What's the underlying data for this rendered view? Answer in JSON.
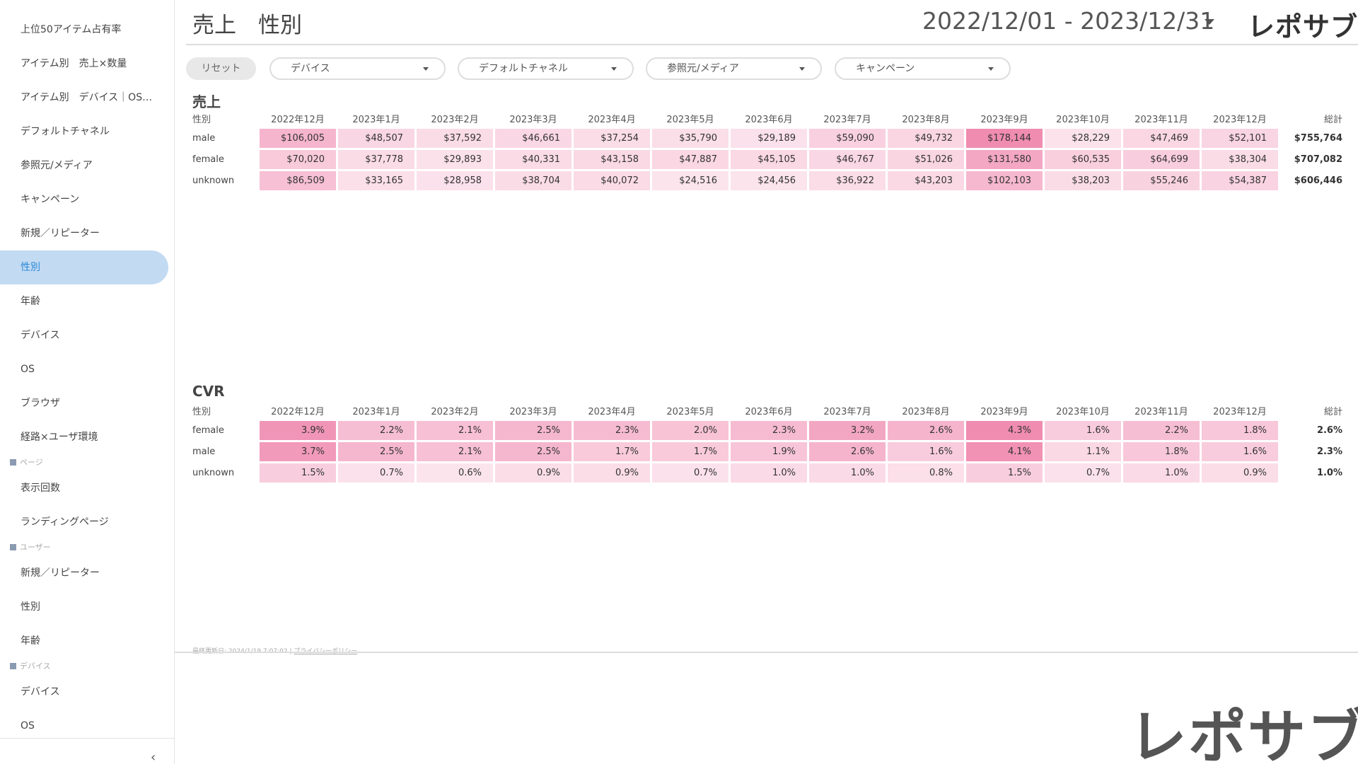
{
  "sidebar": {
    "active_index": 7,
    "groups": [
      {
        "items": [
          "上位50アイテム占有率",
          "アイテム別　売上×数量",
          "アイテム別　デバイス｜OS…",
          "デフォルトチャネル",
          "参照元/メディア",
          "キャンペーン",
          "新規／リピーター",
          "性別",
          "年齢",
          "デバイス",
          "OS",
          "ブラウザ",
          "経路×ユーザ環境"
        ]
      },
      {
        "heading": "ページ",
        "items": [
          "表示回数",
          "ランディングページ"
        ]
      },
      {
        "heading": "ユーザー",
        "items": [
          "新規／リピーター",
          "性別",
          "年齢"
        ]
      },
      {
        "heading": "デバイス",
        "items": [
          "デバイス",
          "OS"
        ]
      }
    ]
  },
  "header": {
    "title": "売上　性別",
    "date_range": "2022/12/01 - 2023/12/31",
    "logo": "レポサブ"
  },
  "filters": {
    "reset": "リセット",
    "dropdowns": [
      "デバイス",
      "デフォルトチャネル",
      "参照元/メディア",
      "キャンペーン"
    ]
  },
  "tables": [
    {
      "title": "売上",
      "columns": [
        "性別",
        "2022年12月",
        "2023年1月",
        "2023年2月",
        "2023年3月",
        "2023年4月",
        "2023年5月",
        "2023年6月",
        "2023年7月",
        "2023年8月",
        "2023年9月",
        "2023年10月",
        "2023年11月",
        "2023年12月",
        "総計"
      ],
      "rows": [
        [
          "male",
          "$106,005",
          "$48,507",
          "$37,592",
          "$46,661",
          "$37,254",
          "$35,790",
          "$29,189",
          "$59,090",
          "$49,732",
          "$178,144",
          "$28,229",
          "$47,469",
          "$52,101",
          "$755,764"
        ],
        [
          "female",
          "$70,020",
          "$37,778",
          "$29,893",
          "$40,331",
          "$43,158",
          "$47,887",
          "$45,105",
          "$46,767",
          "$51,026",
          "$131,580",
          "$60,535",
          "$64,699",
          "$38,304",
          "$707,082"
        ],
        [
          "unknown",
          "$86,509",
          "$33,165",
          "$28,958",
          "$38,704",
          "$40,072",
          "$24,516",
          "$24,456",
          "$36,922",
          "$43,203",
          "$102,103",
          "$38,203",
          "$55,246",
          "$54,387",
          "$606,446"
        ]
      ]
    },
    {
      "title": "CVR",
      "columns": [
        "性別",
        "2022年12月",
        "2023年1月",
        "2023年2月",
        "2023年3月",
        "2023年4月",
        "2023年5月",
        "2023年6月",
        "2023年7月",
        "2023年8月",
        "2023年9月",
        "2023年10月",
        "2023年11月",
        "2023年12月",
        "総計"
      ],
      "rows": [
        [
          "female",
          "3.9%",
          "2.2%",
          "2.1%",
          "2.5%",
          "2.3%",
          "2.0%",
          "2.3%",
          "3.2%",
          "2.6%",
          "4.3%",
          "1.6%",
          "2.2%",
          "1.8%",
          "2.6%"
        ],
        [
          "male",
          "3.7%",
          "2.5%",
          "2.1%",
          "2.5%",
          "1.7%",
          "1.7%",
          "1.9%",
          "2.6%",
          "1.6%",
          "4.1%",
          "1.1%",
          "1.8%",
          "1.6%",
          "2.3%"
        ],
        [
          "unknown",
          "1.5%",
          "0.7%",
          "0.6%",
          "0.9%",
          "0.9%",
          "0.7%",
          "1.0%",
          "1.0%",
          "0.8%",
          "1.5%",
          "0.7%",
          "1.0%",
          "0.9%",
          "1.0%"
        ]
      ]
    }
  ],
  "footer": {
    "updated": "最終更新日: 2024/1/19 7:07:02",
    "privacy": "プライバシーポリシー"
  },
  "brand_logo": "レポサブ"
}
